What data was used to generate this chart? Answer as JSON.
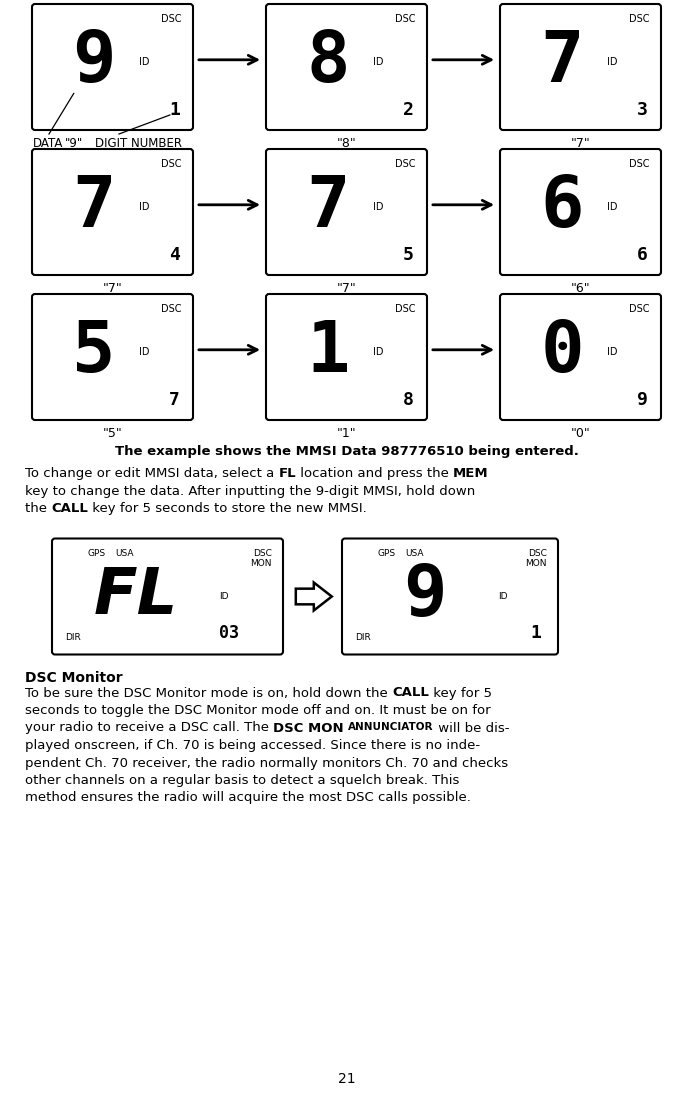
{
  "page_number": "21",
  "bg_color": "#ffffff",
  "displays_row1": [
    {
      "main": "9",
      "sub": "1",
      "label": "\"9\""
    },
    {
      "main": "8",
      "sub": "2",
      "label": "\"8\""
    },
    {
      "main": "7",
      "sub": "3",
      "label": "\"7\""
    }
  ],
  "displays_row2": [
    {
      "main": "7",
      "sub": "4",
      "label": "\"7\""
    },
    {
      "main": "7",
      "sub": "5",
      "label": "\"7\""
    },
    {
      "main": "6",
      "sub": "6",
      "label": "\"6\""
    }
  ],
  "displays_row3": [
    {
      "main": "5",
      "sub": "7",
      "label": "\"5\""
    },
    {
      "main": "1",
      "sub": "8",
      "label": "\"1\""
    },
    {
      "main": "0",
      "sub": "9",
      "label": "\"0\""
    }
  ],
  "caption": "The example shows the MMSI Data 987776510 being entered.",
  "row1_label_extra": [
    "DATA",
    "\"9\"",
    "DIGIT NUMBER"
  ],
  "dsc_monitor_title": "DSC Monitor"
}
